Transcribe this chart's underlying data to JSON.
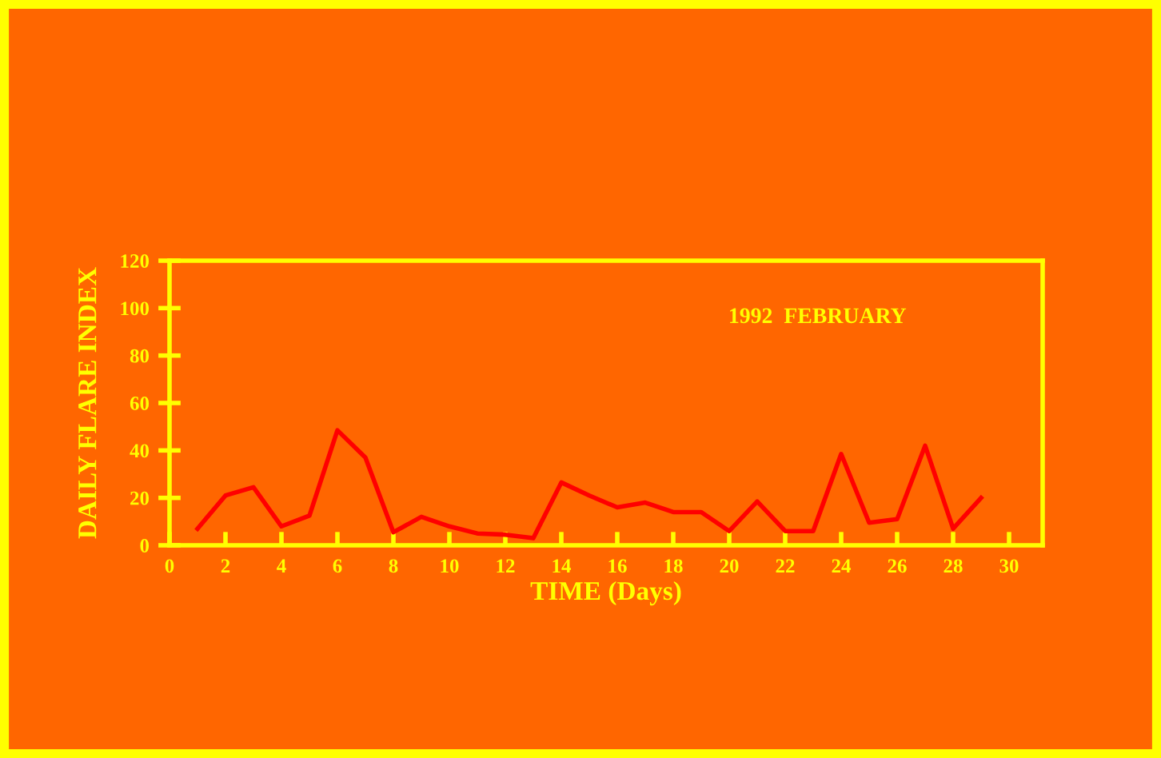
{
  "chart_data": {
    "type": "line",
    "xlabel": "TIME (Days)",
    "ylabel": "DAILY FLARE INDEX",
    "annotations": [
      "1992  FEBRUARY"
    ],
    "x": [
      1,
      2,
      3,
      4,
      5,
      6,
      7,
      8,
      9,
      10,
      11,
      12,
      13,
      14,
      15,
      16,
      17,
      18,
      19,
      20,
      21,
      22,
      23,
      24,
      25,
      26,
      27,
      28,
      29
    ],
    "series": [
      {
        "color": "#ff0000",
        "values": [
          7,
          21,
          24.5,
          8,
          12.5,
          48.5,
          37,
          5.5,
          12,
          8,
          5,
          4.5,
          3,
          26.5,
          21,
          16,
          18,
          14,
          14,
          6,
          18.5,
          6,
          6,
          38.5,
          9.5,
          11,
          42,
          7,
          20
        ]
      }
    ],
    "xlim": [
      0,
      31.2
    ],
    "ylim": [
      0,
      120
    ],
    "xticks": [
      0,
      2,
      4,
      6,
      8,
      10,
      12,
      14,
      16,
      18,
      20,
      22,
      24,
      26,
      28,
      30
    ],
    "yticks": [
      0,
      20,
      40,
      60,
      80,
      100,
      120
    ],
    "grid": false,
    "legend": false,
    "marker": "none",
    "line_style": "solid"
  }
}
